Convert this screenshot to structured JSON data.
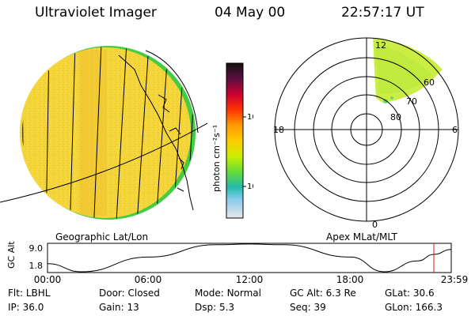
{
  "header": {
    "instrument": "Ultraviolet Imager",
    "date": "04 May 00",
    "time": "22:57:17 UT"
  },
  "colorbar": {
    "unit_label": "photon cm⁻²s⁻¹",
    "tick_labels": [
      "100",
      "10"
    ],
    "scale": "log",
    "colors": [
      "#111111",
      "#5a1040",
      "#cc0033",
      "#ff3300",
      "#ff9900",
      "#ffcc00",
      "#ccee00",
      "#66dd33",
      "#22bbaa",
      "#88ccee",
      "#e8e8e8"
    ]
  },
  "globe_panel": {
    "label": "Geographic Lat/Lon",
    "fill_color": "#f4d438",
    "edge_color": "#44cc44"
  },
  "polar_panel": {
    "label": "Apex MLat/MLT",
    "mlt_labels": [
      "12",
      "18",
      "6",
      "0"
    ],
    "mlat_labels": [
      "60",
      "70",
      "80"
    ],
    "aurora_color": "#ccee44"
  },
  "timeline": {
    "ylabel": "GC Alt",
    "ytick_labels": [
      "9.0",
      "1.8"
    ],
    "xtick_labels": [
      "00:00",
      "06:00",
      "12:00",
      "18:00",
      "23:59"
    ],
    "marker_color": "#cc2222",
    "chart_data": {
      "type": "line",
      "xlabel": "",
      "ylabel": "GC Alt",
      "x": [
        "00:00",
        "02:00",
        "06:00",
        "10:00",
        "12:00",
        "14:00",
        "18:00",
        "20:00",
        "22:00",
        "22:57",
        "23:59"
      ],
      "y": [
        3.9,
        1.8,
        5.6,
        8.8,
        9.0,
        8.8,
        5.6,
        1.8,
        4.6,
        6.3,
        7.6
      ],
      "ylim": [
        1.8,
        9.0
      ],
      "marker_x": "22:57"
    }
  },
  "info": {
    "row1": [
      {
        "label": "Flt:",
        "value": "LBHL"
      },
      {
        "label": "Door:",
        "value": "Closed"
      },
      {
        "label": "Mode:",
        "value": "Normal"
      },
      {
        "label": "GC Alt:",
        "value": "6.3 Re"
      },
      {
        "label": "GLat:",
        "value": "30.6"
      }
    ],
    "row2": [
      {
        "label": "IP:",
        "value": "36.0"
      },
      {
        "label": "Gain:",
        "value": "13"
      },
      {
        "label": "Dsp:",
        "value": "5.3"
      },
      {
        "label": "Seq:",
        "value": "39"
      },
      {
        "label": "GLon:",
        "value": "166.3"
      }
    ]
  }
}
